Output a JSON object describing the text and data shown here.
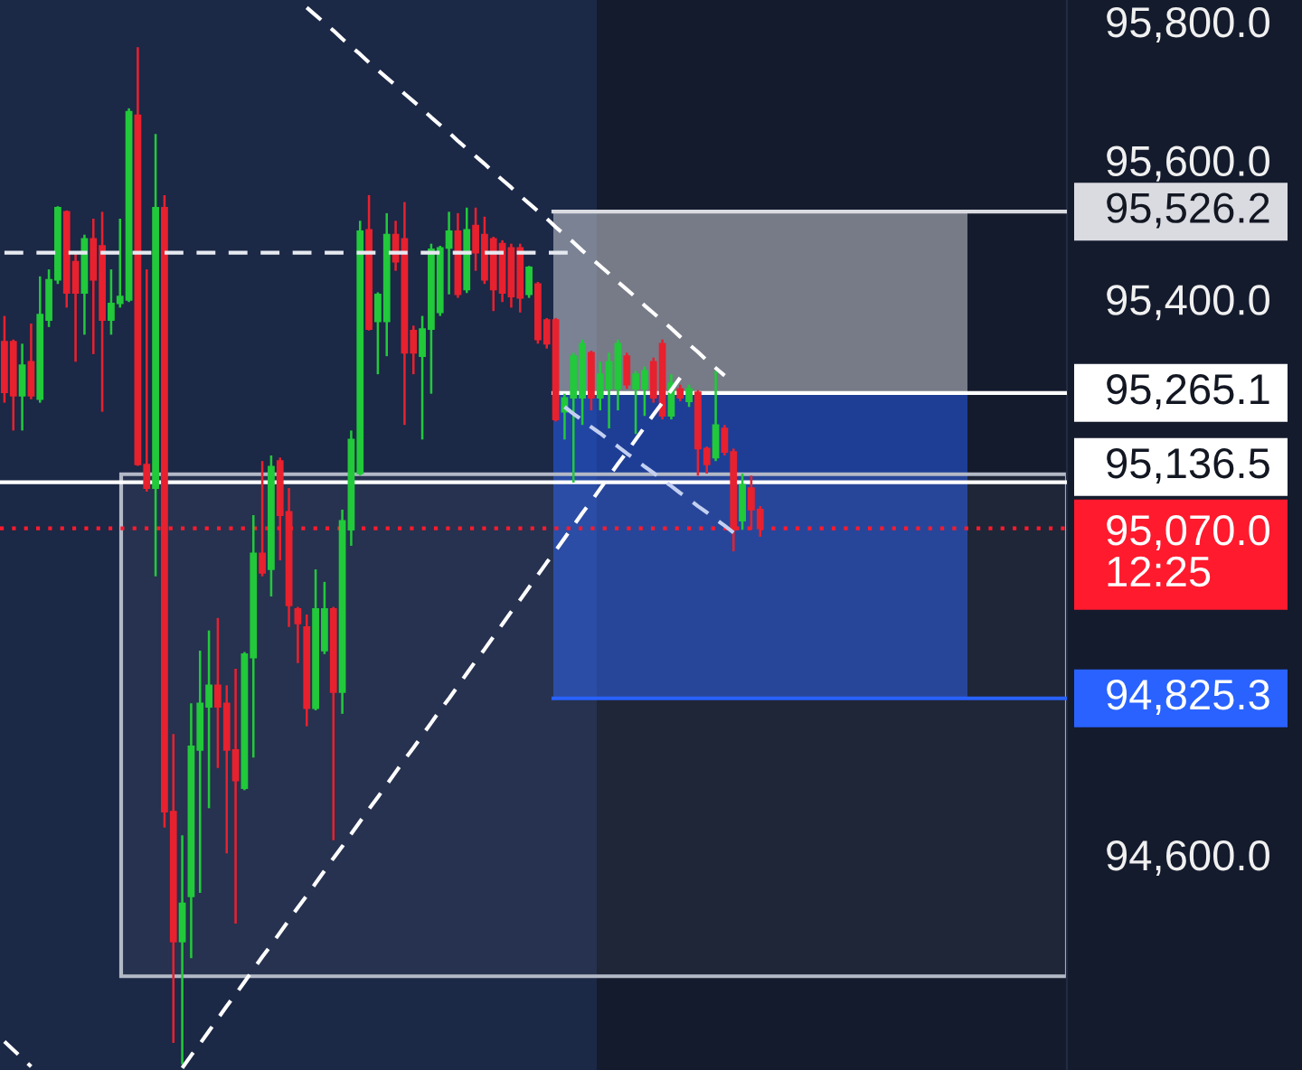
{
  "chart_data": {
    "type": "candlestick",
    "categories": [
      null,
      null,
      null,
      null,
      null,
      null,
      null,
      null,
      null,
      null,
      null,
      null,
      null,
      null,
      null,
      null,
      null,
      null,
      null,
      null,
      null,
      null,
      null,
      null,
      null,
      null,
      null,
      null,
      null,
      null,
      null,
      null,
      null,
      null,
      null,
      null,
      null,
      null,
      null,
      null,
      null,
      null,
      null,
      null,
      null,
      null,
      null,
      null,
      null,
      null,
      null,
      null,
      null,
      null,
      null,
      null,
      null,
      null,
      null,
      null,
      null,
      null,
      null,
      null,
      null,
      null,
      null,
      null,
      null,
      null,
      null,
      null,
      null,
      null,
      null,
      null,
      null,
      null,
      null,
      null,
      null,
      null,
      null,
      null,
      null,
      null,
      null,
      null,
      null,
      null,
      null,
      null,
      null,
      null,
      null,
      null,
      null,
      null,
      null,
      null,
      null,
      null,
      null,
      null,
      null,
      null,
      null,
      null,
      null,
      null,
      null,
      null,
      null,
      null,
      null,
      null,
      null,
      null,
      null,
      null
    ],
    "ohlc": [
      [
        95339,
        95376,
        95251,
        95266
      ],
      [
        95339,
        95342,
        95211,
        95261
      ],
      [
        95261,
        95336,
        95211,
        95305
      ],
      [
        95310,
        95365,
        95256,
        95261
      ],
      [
        95256,
        95433,
        95251,
        95378
      ],
      [
        95370,
        95443,
        95360,
        95428
      ],
      [
        95428,
        95534,
        95422,
        95532
      ],
      [
        95526,
        95528,
        95388,
        95409
      ],
      [
        95454,
        95467,
        95310,
        95409
      ],
      [
        95409,
        95493,
        95349,
        95487
      ],
      [
        95487,
        95516,
        95321,
        95428
      ],
      [
        95477,
        95526,
        95238,
        95370
      ],
      [
        95370,
        95443,
        95349,
        95394
      ],
      [
        95394,
        95516,
        95388,
        95404
      ],
      [
        95399,
        95675,
        95396,
        95670
      ],
      [
        95665,
        95763,
        95160,
        95162
      ],
      [
        95162,
        95443,
        95123,
        95128
      ],
      [
        95128,
        95638,
        95001,
        95532
      ],
      [
        95532,
        95550,
        94639,
        94662
      ],
      [
        94662,
        94774,
        94329,
        94475
      ],
      [
        94475,
        94628,
        94298,
        94530
      ],
      [
        94540,
        94818,
        94451,
        94756
      ],
      [
        94751,
        94894,
        94545,
        94818
      ],
      [
        94813,
        94923,
        94667,
        94844
      ],
      [
        94844,
        94941,
        94725,
        94813
      ],
      [
        94818,
        94844,
        94602,
        94751
      ],
      [
        94751,
        94868,
        94501,
        94707
      ],
      [
        94696,
        94892,
        94693,
        94889
      ],
      [
        94884,
        95089,
        94740,
        95034
      ],
      [
        95034,
        95167,
        95001,
        95006
      ],
      [
        95011,
        95175,
        94972,
        95159
      ],
      [
        95167,
        95172,
        95024,
        95089
      ],
      [
        95094,
        95128,
        94928,
        94959
      ],
      [
        94954,
        94957,
        94876,
        94933
      ],
      [
        94928,
        94946,
        94785,
        94811
      ],
      [
        94811,
        95011,
        94808,
        94954
      ],
      [
        94894,
        94993,
        94889,
        94954
      ],
      [
        94954,
        94957,
        94621,
        94834
      ],
      [
        94834,
        95097,
        94803,
        95081
      ],
      [
        95068,
        95211,
        95045,
        95198
      ],
      [
        95149,
        95513,
        95146,
        95498
      ],
      [
        95500,
        95550,
        95355,
        95357
      ],
      [
        95368,
        95410,
        95292,
        95407
      ],
      [
        95368,
        95524,
        95318,
        95493
      ],
      [
        95493,
        95513,
        95441,
        95454
      ],
      [
        95487,
        95540,
        95219,
        95323
      ],
      [
        95355,
        95362,
        95292,
        95323
      ],
      [
        95318,
        95376,
        95198,
        95357
      ],
      [
        95357,
        95480,
        95264,
        95472
      ],
      [
        95381,
        95477,
        95376,
        95474
      ],
      [
        95474,
        95526,
        95407,
        95498
      ],
      [
        95498,
        95524,
        95402,
        95407
      ],
      [
        95414,
        95532,
        95409,
        95500
      ],
      [
        95506,
        95532,
        95441,
        95467
      ],
      [
        95493,
        95519,
        95422,
        95428
      ],
      [
        95487,
        95490,
        95383,
        95414
      ],
      [
        95480,
        95485,
        95396,
        95409
      ],
      [
        95474,
        95480,
        95388,
        95404
      ],
      [
        95474,
        95480,
        95381,
        95402
      ],
      [
        95407,
        95448,
        95402,
        95446
      ],
      [
        95422,
        95425,
        95336,
        95342
      ],
      [
        95370,
        95373,
        95329,
        95336
      ],
      [
        95370,
        95373,
        95224,
        95227
      ],
      [
        95238,
        95264,
        95198,
        95258
      ],
      [
        95258,
        95323,
        95136,
        95318
      ],
      [
        95258,
        95342,
        95219,
        95336
      ],
      [
        95323,
        95326,
        95240,
        95258
      ],
      [
        95258,
        95310,
        95240,
        95292
      ],
      [
        95271,
        95323,
        95214,
        95310
      ],
      [
        95271,
        95342,
        95240,
        95336
      ],
      [
        95318,
        95323,
        95271,
        95277
      ],
      [
        95271,
        95297,
        95206,
        95292
      ],
      [
        95271,
        95303,
        95232,
        95297
      ],
      [
        95310,
        95316,
        95251,
        95258
      ],
      [
        95336,
        95342,
        95227,
        95232
      ],
      [
        95232,
        95292,
        95227,
        95279
      ],
      [
        95271,
        95277,
        95253,
        95258
      ],
      [
        95253,
        95277,
        95245,
        95271
      ],
      [
        95266,
        95269,
        95146,
        95185
      ],
      [
        95185,
        95188,
        95149,
        95162
      ],
      [
        95172,
        95297,
        95167,
        95219
      ],
      [
        95214,
        95219,
        95175,
        95180
      ],
      [
        95180,
        95185,
        95037,
        95068
      ],
      [
        95081,
        95149,
        95068,
        95133
      ],
      [
        95128,
        95146,
        95068,
        95097
      ],
      [
        95097,
        95102,
        95058,
        95070
      ],
      null,
      null,
      null,
      null,
      null,
      null,
      null,
      null,
      null,
      null,
      null,
      null,
      null,
      null,
      null,
      null,
      null,
      null,
      null,
      null,
      null,
      null,
      null,
      null,
      null,
      null,
      null,
      null,
      null,
      null,
      null,
      null,
      null,
      null
    ],
    "colors": [
      "#e8212f",
      "#e8212f",
      "#22c93b",
      "#e8212f",
      "#22c93b",
      "#22c93b",
      "#22c93b",
      "#e8212f",
      "#e8212f",
      "#22c93b",
      "#e8212f",
      "#e8212f",
      "#22c93b",
      "#22c93b",
      "#22c93b",
      "#e8212f",
      "#e8212f",
      "#22c93b",
      "#e8212f",
      "#e8212f",
      "#22c93b",
      "#22c93b",
      "#22c93b",
      "#22c93b",
      "#e8212f",
      "#e8212f",
      "#e8212f",
      "#22c93b",
      "#22c93b",
      "#e8212f",
      "#22c93b",
      "#e8212f",
      "#e8212f",
      "#e8212f",
      "#e8212f",
      "#22c93b",
      "#22c93b",
      "#e8212f",
      "#22c93b",
      "#22c93b",
      "#22c93b",
      "#e8212f",
      "#22c93b",
      "#22c93b",
      "#e8212f",
      "#e8212f",
      "#e8212f",
      "#22c93b",
      "#22c93b",
      "#22c93b",
      "#22c93b",
      "#e8212f",
      "#22c93b",
      "#e8212f",
      "#e8212f",
      "#e8212f",
      "#e8212f",
      "#e8212f",
      "#e8212f",
      "#22c93b",
      "#e8212f",
      "#e8212f",
      "#e8212f",
      "#22c93b",
      "#22c93b",
      "#22c93b",
      "#e8212f",
      "#22c93b",
      "#22c93b",
      "#22c93b",
      "#e8212f",
      "#22c93b",
      "#22c93b",
      "#e8212f",
      "#e8212f",
      "#22c93b",
      "#e8212f",
      "#22c93b",
      "#e8212f",
      "#e8212f",
      "#22c93b",
      "#e8212f",
      "#e8212f",
      "#22c93b",
      "#e8212f",
      "#e8212f",
      null,
      null,
      null,
      null,
      null,
      null,
      null,
      null,
      null,
      null,
      null,
      null,
      null,
      null,
      null,
      null,
      null,
      null,
      null,
      null,
      null,
      null,
      null,
      null,
      null,
      null,
      null,
      null,
      null,
      null,
      null,
      null,
      null,
      null
    ],
    "series": [
      {
        "type": "line",
        "color": "#e6e9f0",
        "values": [
          95467,
          95467,
          95467,
          95467,
          95467,
          95467,
          95467,
          95467,
          95467,
          95467,
          95467,
          95467,
          95467,
          95467,
          95467,
          95467,
          95467,
          95467,
          95467,
          95467,
          95467,
          95467,
          95467,
          95467,
          95467,
          95467,
          95467,
          95467,
          95467,
          95467,
          95467,
          95467,
          95467,
          95467,
          95467,
          95467,
          95467,
          95467,
          95467,
          95467,
          95467,
          95467,
          95467,
          95467,
          95467,
          95467,
          95467,
          95467,
          95467,
          95467,
          95467,
          95467,
          95467,
          95467,
          95467,
          95467,
          95467,
          95467,
          95467,
          95467,
          95467,
          95467,
          95467,
          95467,
          95467,
          null,
          null,
          null,
          null,
          null,
          null,
          null,
          null,
          null,
          null,
          null,
          null,
          null,
          null,
          null,
          null,
          null,
          null,
          null,
          null,
          null,
          null,
          null,
          null,
          null,
          null,
          null,
          null,
          null,
          null,
          null,
          null,
          null,
          null,
          null,
          null,
          null,
          null,
          null,
          null,
          null,
          null,
          null,
          null,
          null,
          null,
          null,
          null,
          null,
          null,
          null,
          null,
          null,
          null,
          null
        ]
      },
      {
        "type": "line",
        "color": "#ffffff",
        "values": [
          null,
          null,
          null,
          null,
          null,
          null,
          null,
          null,
          null,
          null,
          null,
          null,
          null,
          null,
          null,
          null,
          null,
          null,
          null,
          null,
          null,
          null,
          null,
          null,
          null,
          null,
          null,
          null,
          null,
          null,
          null,
          null,
          null,
          null,
          95820,
          95809,
          95798,
          95787,
          95775,
          95764,
          95753,
          95741,
          95730,
          95719,
          95708,
          95696,
          95685,
          95674,
          95662,
          95651,
          95640,
          95628,
          95617,
          95606,
          95595,
          95583,
          95572,
          95561,
          95549,
          95538,
          95527,
          95516,
          95504,
          95493,
          95482,
          95470,
          95459,
          95448,
          95437,
          95425,
          95414,
          95403,
          95391,
          95380,
          95369,
          95358,
          95346,
          95335,
          95324,
          95312,
          95301,
          95290,
          null,
          null,
          null,
          null,
          null,
          null,
          null,
          null,
          null,
          null,
          null,
          null,
          null,
          null,
          null,
          null,
          null,
          null,
          null,
          null,
          null,
          null,
          null,
          null,
          null,
          null,
          null,
          null,
          null,
          null,
          null,
          null,
          null,
          null,
          null,
          null,
          null,
          null
        ]
      },
      {
        "type": "line",
        "color": "#ffffff",
        "values": [
          null,
          null,
          null,
          null,
          null,
          null,
          null,
          null,
          null,
          null,
          null,
          null,
          null,
          null,
          null,
          null,
          null,
          null,
          null,
          null,
          94293,
          94311,
          94328,
          94346,
          94364,
          94382,
          94399,
          94417,
          94435,
          94453,
          94470,
          94488,
          94506,
          94524,
          94541,
          94559,
          94577,
          94595,
          94612,
          94630,
          94648,
          94666,
          94683,
          94701,
          94719,
          94737,
          94754,
          94772,
          94790,
          94808,
          94825,
          94843,
          94861,
          94879,
          94896,
          94914,
          94932,
          94950,
          94967,
          94985,
          95003,
          95021,
          95038,
          95056,
          95074,
          95092,
          95109,
          95127,
          95145,
          95163,
          95180,
          95198,
          95216,
          95234,
          95251,
          95269,
          95287,
          null,
          null,
          null,
          null,
          null,
          null,
          null,
          null,
          null,
          null,
          null,
          null,
          null,
          null,
          null,
          null,
          null,
          null,
          null,
          null,
          null,
          null,
          null,
          null,
          null,
          null,
          null,
          null,
          null,
          null,
          null,
          null,
          null,
          null,
          null,
          null,
          null,
          null,
          null,
          null,
          null,
          null,
          null
        ]
      },
      {
        "type": "line",
        "color": "#c3d0f2",
        "values": [
          null,
          null,
          null,
          null,
          null,
          null,
          null,
          null,
          null,
          null,
          null,
          null,
          null,
          null,
          null,
          null,
          null,
          null,
          null,
          null,
          null,
          null,
          null,
          null,
          null,
          null,
          null,
          null,
          null,
          null,
          null,
          null,
          null,
          null,
          null,
          null,
          null,
          null,
          null,
          null,
          null,
          null,
          null,
          null,
          null,
          null,
          null,
          null,
          null,
          null,
          null,
          null,
          null,
          null,
          null,
          null,
          null,
          null,
          null,
          null,
          null,
          null,
          null,
          95245,
          95235,
          95226,
          95216,
          95207,
          95197,
          95188,
          95178,
          95169,
          95159,
          95150,
          95140,
          95131,
          95121,
          95112,
          95102,
          95093,
          95083,
          95074,
          95064,
          null,
          null,
          null,
          null,
          null,
          null,
          null,
          null,
          null,
          null,
          null,
          null,
          null,
          null,
          null,
          null,
          null,
          null,
          null,
          null,
          null,
          null,
          null,
          null,
          null,
          null,
          null,
          null,
          null,
          null,
          null,
          null,
          null,
          null,
          null,
          null,
          null
        ]
      },
      {
        "type": "line",
        "color": "#ffffff",
        "values": [
          94331,
          94319,
          94307,
          94295,
          null,
          null,
          null,
          null,
          null,
          null,
          null,
          null,
          null,
          null,
          null,
          null,
          null,
          null,
          null,
          null,
          null,
          null,
          null,
          null,
          null,
          null,
          null,
          null,
          null,
          null,
          null,
          null,
          null,
          null,
          null,
          null,
          null,
          null,
          null,
          null,
          null,
          null,
          null,
          null,
          null,
          null,
          null,
          null,
          null,
          null,
          null,
          null,
          null,
          null,
          null,
          null,
          null,
          null,
          null,
          null,
          null,
          null,
          null,
          null,
          null,
          null,
          null,
          null,
          null,
          null,
          null,
          null,
          null,
          null,
          null,
          null,
          null,
          null,
          null,
          null,
          null,
          null,
          null,
          null,
          null,
          null,
          null,
          null,
          null,
          null,
          null,
          null,
          null,
          null,
          null,
          null,
          null,
          null,
          null,
          null,
          null,
          null,
          null,
          null,
          null,
          null,
          null,
          null,
          null,
          null,
          null,
          null,
          null,
          null,
          null,
          null,
          null,
          null,
          null,
          null
        ]
      }
    ],
    "line_style": "dashed",
    "ylim": [
      94290,
      95831
    ],
    "yticks": [
      {
        "value": 95800,
        "label": "95,800.0"
      },
      {
        "value": 95600,
        "label": "95,600.0"
      },
      {
        "value": 95400,
        "label": "95,400.0"
      },
      {
        "value": 94600,
        "label": "94,600.0"
      }
    ],
    "tick_labels": "y",
    "ref_lines": [
      {
        "axis": "y",
        "value": 95526.2,
        "label": "95,526.2",
        "color": "#dadbe1",
        "line_style": "solid"
      },
      {
        "axis": "y",
        "value": 95265.1,
        "label": "95,265.1",
        "color": "#ffffff",
        "line_style": "solid"
      },
      {
        "axis": "y",
        "value": 95136.5,
        "label": "95,136.5",
        "color": "#ffffff",
        "line_style": "solid"
      },
      {
        "axis": "y",
        "value": 95070.0,
        "label": "95,070.0\n12:25",
        "color": "#ff1a2e",
        "line_style": "dotted"
      },
      {
        "axis": "y",
        "value": 94825.3,
        "label": "94,825.3",
        "color": "#2962ff",
        "line_style": "solid"
      }
    ],
    "bands": [
      {
        "axis": "y",
        "from": 95265.1,
        "to": 95526.2,
        "color": "#777b87"
      },
      {
        "axis": "y",
        "from": 95265.1,
        "to": 94825.3,
        "color": "#1e3e96"
      },
      {
        "axis": "y",
        "from": 95148,
        "to": 94425,
        "color": "#b3b9c6"
      }
    ]
  }
}
